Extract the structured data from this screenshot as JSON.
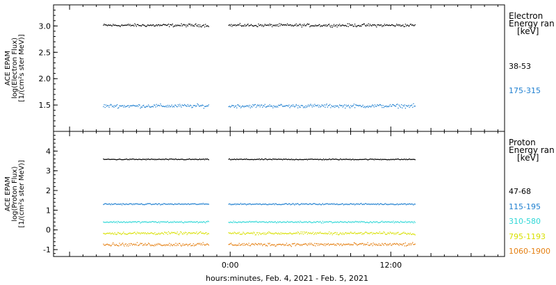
{
  "colors": {
    "background": "#ffffff",
    "axis": "#000000",
    "black_series": "#000000",
    "blue_series": "#1e7fd0",
    "cyan_series": "#2ed7d7",
    "yellow_series": "#d8e000",
    "orange_series": "#e57f10"
  },
  "x_axis": {
    "label": "hours:minutes, Feb.  4, 2021 - Feb.  5, 2021",
    "ticks": [
      {
        "hour": 0,
        "label": "0:00"
      },
      {
        "hour": 12,
        "label": "12:00"
      }
    ]
  },
  "chart_data": [
    {
      "type": "scatter",
      "panel": "electron",
      "ylabel": [
        "ACE EPAM",
        "log(Electron Flux)",
        "[1/(cm²s ster MeV)]"
      ],
      "ylim": [
        1.0,
        3.4
      ],
      "xlim_hours": [
        -13.2,
        20.5
      ],
      "yticks": [
        1.5,
        2.0,
        2.5,
        3.0
      ],
      "ytick_labels": [
        "1.5",
        "2.0",
        "2.5",
        "3.0"
      ],
      "legend_title": [
        "Electron",
        "Energy ran",
        "[keV]"
      ],
      "data_gap_hours": [
        -1.6,
        -0.2
      ],
      "x_range_hours": [
        -9.5,
        13.8
      ],
      "series": [
        {
          "name": "38-53",
          "color": "#000000",
          "mean": 3.02,
          "noise": 0.04
        },
        {
          "name": "175-315",
          "color": "#1e7fd0",
          "mean": 1.49,
          "noise": 0.05
        }
      ]
    },
    {
      "type": "scatter",
      "panel": "proton",
      "ylabel": [
        "ACE EPAM",
        "log(Proton Flux)",
        "[1/(cm²s ster MeV)]"
      ],
      "ylim": [
        -1.35,
        5.0
      ],
      "xlim_hours": [
        -13.2,
        20.5
      ],
      "yticks": [
        -1,
        0,
        1,
        2,
        3,
        4
      ],
      "ytick_labels": [
        "-1",
        "0",
        "1",
        "2",
        "3",
        "4"
      ],
      "legend_title": [
        "Proton",
        "Energy ran",
        "[keV]"
      ],
      "data_gap_hours": [
        -1.6,
        -0.2
      ],
      "x_range_hours": [
        -9.5,
        13.8
      ],
      "series": [
        {
          "name": "47-68",
          "color": "#000000",
          "mean": 3.6,
          "noise": 0.04
        },
        {
          "name": "115-195",
          "color": "#1e7fd0",
          "mean": 1.33,
          "noise": 0.05
        },
        {
          "name": "310-580",
          "color": "#2ed7d7",
          "mean": 0.42,
          "noise": 0.06
        },
        {
          "name": "795-1193",
          "color": "#d8e000",
          "mean": -0.15,
          "noise": 0.1
        },
        {
          "name": "1060-1900",
          "color": "#e57f10",
          "mean": -0.72,
          "noise": 0.12
        }
      ]
    }
  ]
}
